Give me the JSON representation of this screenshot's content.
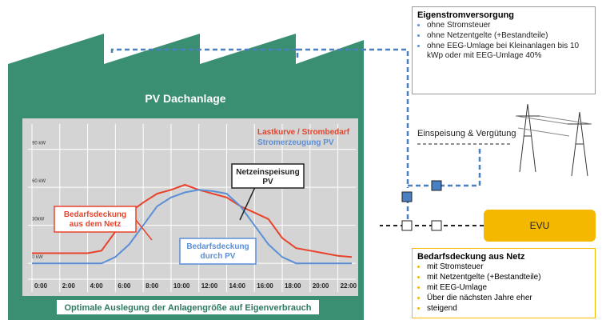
{
  "roof_label": "PV Dachanlage",
  "chart": {
    "type": "line",
    "categories": [
      "0:00",
      null,
      "2:00",
      null,
      "4:00",
      null,
      "6:00",
      null,
      "8:00",
      null,
      "10:00",
      null,
      "12:00",
      null,
      "14:00",
      null,
      "16:00",
      null,
      "18:00",
      null,
      "20:00",
      null,
      "22:00",
      null
    ],
    "series": [
      {
        "name": "Lastkurve / Strombedarf",
        "color": "#e8432a",
        "values": [
          8,
          8,
          8,
          8,
          8,
          10,
          25,
          40,
          48,
          55,
          58,
          62,
          58,
          55,
          52,
          45,
          40,
          35,
          20,
          12,
          10,
          8,
          6,
          5
        ]
      },
      {
        "name": "Stromerzeugung PV",
        "color": "#5b8fd6",
        "values": [
          0,
          0,
          0,
          0,
          0,
          0,
          5,
          15,
          30,
          45,
          52,
          56,
          58,
          57,
          55,
          45,
          30,
          15,
          5,
          0,
          0,
          0,
          0,
          0
        ]
      }
    ],
    "ylim": [
      -10,
      110
    ],
    "yticks": [
      {
        "value": 0,
        "label": "0 kW"
      },
      {
        "value": 30,
        "label": "30kW"
      },
      {
        "value": 60,
        "label": "60 kW"
      },
      {
        "value": 90,
        "label": "90 kW"
      }
    ],
    "grid": true,
    "annotations": {
      "feed_in": [
        "Netzeinspeisung",
        "PV"
      ],
      "from_grid": [
        "Bedarfsdeckung",
        "aus dem Netz"
      ],
      "from_pv": [
        "Bedarfsdeckung",
        "durch PV"
      ]
    }
  },
  "caption": "Optimale Auslegung der Anlagengröße auf Eigenverbrauch",
  "own_supply": {
    "title": "Eigenstromversorgung",
    "items": [
      "ohne Stromsteuer",
      "ohne Netzentgelte (+Bestandteile)",
      "ohne EEG-Umlage bei Kleinanlagen  bis 10 kWp oder mit EEG-Umlage 40%"
    ]
  },
  "feed_in": "Einspeisung & Vergütung",
  "utility": "EVU",
  "grid_supply": {
    "title": "Bedarfsdeckung aus Netz",
    "items": [
      "mit Stromsteuer",
      "mit Netzentgelte (+Bestandteile)",
      "mit EEG-Umlage",
      "Über die nächsten Jahre eher",
      "steigend"
    ]
  }
}
